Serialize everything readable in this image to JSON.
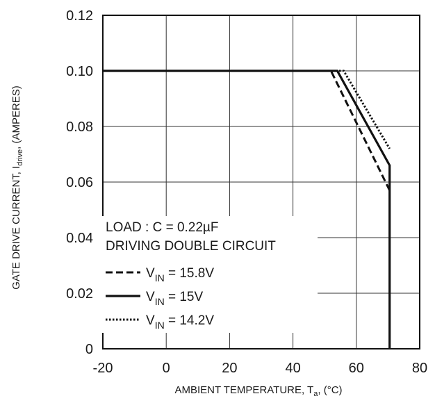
{
  "chart_data": {
    "type": "line",
    "xlabel": {
      "main": "AMBIENT TEMPERATURE, T",
      "sub": "a",
      "tail": ", (°C)"
    },
    "ylabel": {
      "main": "GATE DRIVE CURRENT, I",
      "sub": "drive",
      "tail": ", (AMPERES)"
    },
    "xlim": [
      -20,
      80
    ],
    "ylim": [
      0,
      0.12
    ],
    "x_ticks": [
      "-20",
      "0",
      "20",
      "40",
      "60",
      "80"
    ],
    "y_ticks": [
      "0",
      "0.02",
      "0.04",
      "0.06",
      "0.08",
      "0.10",
      "0.12"
    ],
    "grid": true,
    "annotation": [
      "LOAD : C = 0.22µF",
      "DRIVING DOUBLE CIRCUIT"
    ],
    "legend_position": "bottom-left",
    "series": [
      {
        "name": {
          "pre": "V",
          "sub": "IN",
          "post": " = 15.8V"
        },
        "style": "dashed",
        "x": [
          -20,
          52,
          70.5
        ],
        "y": [
          0.1,
          0.1,
          0.057
        ]
      },
      {
        "name": {
          "pre": "V",
          "sub": "IN",
          "post": " = 15V"
        },
        "style": "solid",
        "x": [
          -20,
          54,
          70.5,
          70.5
        ],
        "y": [
          0.1,
          0.1,
          0.066,
          0
        ]
      },
      {
        "name": {
          "pre": "V",
          "sub": "IN",
          "post": " = 14.2V"
        },
        "style": "dotted",
        "x": [
          -20,
          56,
          70.5
        ],
        "y": [
          0.1,
          0.1,
          0.072
        ]
      }
    ]
  }
}
